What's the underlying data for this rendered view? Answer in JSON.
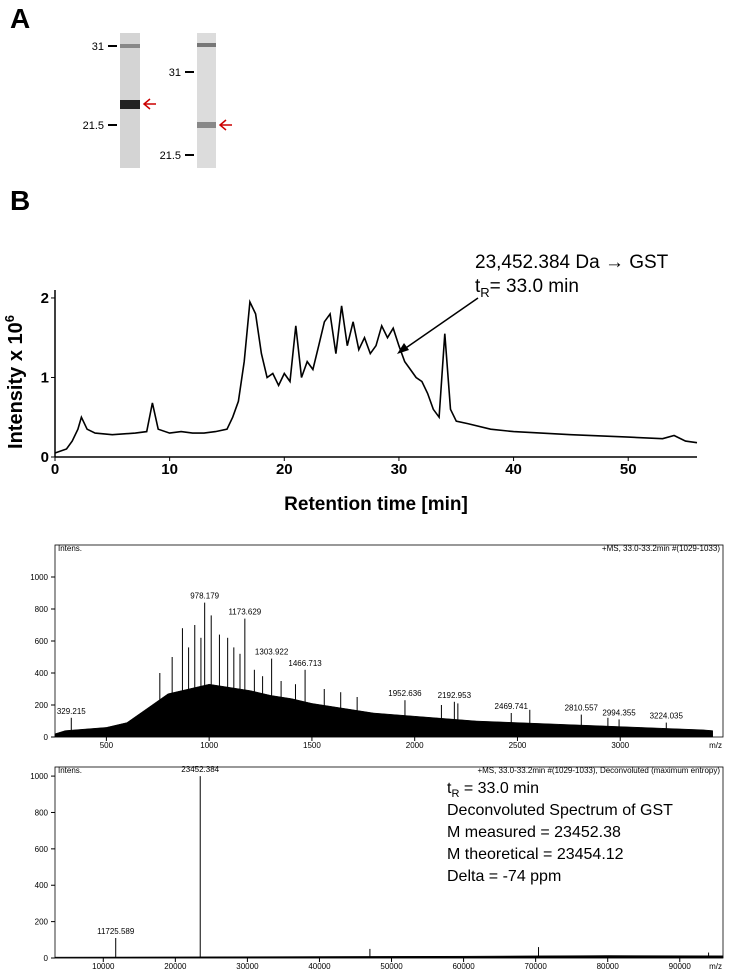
{
  "panel_a": {
    "label": "A",
    "gel_1": {
      "markers": [
        31,
        21.5
      ]
    },
    "gel_2": {
      "markers": [
        31,
        21.5
      ]
    }
  },
  "panel_b": {
    "label": "B"
  },
  "chart_data": [
    {
      "type": "line",
      "y_label": "Intensity x 10",
      "y_label_exponent": "6",
      "x_label": "Retention time [min]",
      "annotation": "23,452.384 Da → GST",
      "tr_label": {
        "text": "t",
        "sub": "R",
        "rest": "= 33.0 min"
      },
      "color": "#000000",
      "x": [
        0,
        1,
        1.5,
        2,
        2.3,
        2.8,
        3.5,
        5,
        7,
        8,
        8.5,
        9,
        10,
        11,
        12,
        13,
        14,
        15,
        15.5,
        16,
        16.5,
        17,
        17.5,
        18,
        18.5,
        19,
        19.5,
        20,
        20.5,
        21,
        21.5,
        22,
        22.5,
        23,
        23.5,
        24,
        24.5,
        25,
        25.5,
        26,
        26.5,
        27,
        27.5,
        28,
        28.5,
        29,
        29.5,
        30,
        30.5,
        31,
        31.5,
        32,
        32.5,
        33,
        33.5,
        34,
        34.5,
        35,
        36,
        38,
        40,
        45,
        50,
        53,
        54,
        55,
        56
      ],
      "values": [
        0.05,
        0.1,
        0.2,
        0.35,
        0.5,
        0.35,
        0.3,
        0.28,
        0.3,
        0.32,
        0.68,
        0.35,
        0.3,
        0.32,
        0.3,
        0.3,
        0.32,
        0.35,
        0.5,
        0.7,
        1.2,
        1.95,
        1.8,
        1.3,
        1.0,
        1.05,
        0.9,
        1.05,
        0.95,
        1.65,
        1.0,
        1.2,
        1.1,
        1.4,
        1.7,
        1.8,
        1.3,
        1.9,
        1.4,
        1.7,
        1.35,
        1.5,
        1.3,
        1.4,
        1.65,
        1.5,
        1.62,
        1.4,
        1.2,
        1.1,
        1.0,
        0.95,
        0.8,
        0.6,
        0.5,
        1.55,
        0.6,
        0.45,
        0.42,
        0.35,
        0.32,
        0.28,
        0.25,
        0.23,
        0.27,
        0.2,
        0.18
      ],
      "xlim": [
        0,
        56
      ],
      "xticks": [
        0,
        10,
        20,
        30,
        40,
        50
      ],
      "ylim": [
        0,
        2.1
      ],
      "yticks": [
        0,
        1,
        2
      ]
    },
    {
      "type": "spectrum",
      "header": "+MS, 33.0-33.2min #(1029-1033)",
      "y_label": "Intens.",
      "x_label": "m/z",
      "xlim": [
        250,
        3500
      ],
      "xticks": [
        500,
        1000,
        1500,
        2000,
        2500,
        3000
      ],
      "ylim": [
        0,
        1200
      ],
      "yticks": [
        0,
        200,
        400,
        600,
        800,
        1000
      ],
      "series": [
        {
          "style": "area",
          "color": "#000000",
          "x": [
            250,
            300,
            400,
            500,
            600,
            700,
            800,
            900,
            1000,
            1100,
            1200,
            1300,
            1400,
            1500,
            1600,
            1700,
            1800,
            1900,
            2000,
            2100,
            2200,
            2300,
            2400,
            2500,
            2600,
            2700,
            2800,
            2900,
            3000,
            3100,
            3200,
            3300,
            3400,
            3450
          ],
          "values": [
            20,
            40,
            50,
            60,
            90,
            180,
            270,
            300,
            330,
            310,
            290,
            260,
            240,
            210,
            190,
            170,
            150,
            140,
            130,
            120,
            110,
            100,
            95,
            90,
            85,
            80,
            75,
            70,
            65,
            60,
            55,
            50,
            45,
            40
          ]
        },
        {
          "style": "stick",
          "color": "#000000",
          "labeled": false,
          "x": [
            760,
            820,
            870,
            900,
            930,
            960,
            1010,
            1050,
            1090,
            1120,
            1150,
            1220,
            1260,
            1350,
            1420,
            1560,
            1640,
            1720,
            2130,
            2210,
            2560,
            2940
          ],
          "values": [
            400,
            500,
            680,
            560,
            700,
            620,
            760,
            640,
            620,
            560,
            520,
            420,
            380,
            350,
            330,
            300,
            280,
            250,
            200,
            210,
            170,
            120
          ]
        },
        {
          "style": "stick",
          "color": "#000000",
          "labeled": true,
          "x": [
            329.215,
            978.179,
            1173.629,
            1303.922,
            1466.713,
            1952.636,
            2192.953,
            2469.741,
            2810.557,
            2994.355,
            3224.035
          ],
          "values": [
            120,
            840,
            740,
            490,
            420,
            230,
            220,
            150,
            140,
            110,
            90
          ]
        }
      ]
    },
    {
      "type": "spectrum",
      "header": "+MS, 33.0-33.2min #(1029-1033), Deconvoluted (maximum entropy)",
      "y_label": "Intens.",
      "x_label": "m/z",
      "tr_label": {
        "text": "t",
        "sub": "R",
        "rest": " = 33.0 min"
      },
      "notes": [
        "Deconvoluted Spectrum of GST",
        "M measured = 23452.38",
        "M theoretical = 23454.12",
        "Delta  = -74 ppm"
      ],
      "xlim": [
        3300,
        96000
      ],
      "xticks": [
        10000,
        20000,
        30000,
        40000,
        50000,
        60000,
        70000,
        80000,
        90000
      ],
      "ylim": [
        0,
        1050
      ],
      "yticks": [
        0,
        200,
        400,
        600,
        800,
        1000
      ],
      "series": [
        {
          "style": "area",
          "color": "#000000",
          "x": [
            3300,
            20000,
            40000,
            60000,
            80000,
            96000
          ],
          "values": [
            5,
            6,
            8,
            10,
            14,
            12
          ]
        },
        {
          "style": "stick",
          "color": "#000000",
          "labeled": false,
          "x": [
            47000,
            70400,
            94000
          ],
          "values": [
            50,
            60,
            30
          ]
        },
        {
          "style": "stick",
          "color": "#000000",
          "labeled": true,
          "x": [
            11725.589,
            23452.384
          ],
          "values": [
            110,
            1000
          ]
        }
      ]
    }
  ]
}
